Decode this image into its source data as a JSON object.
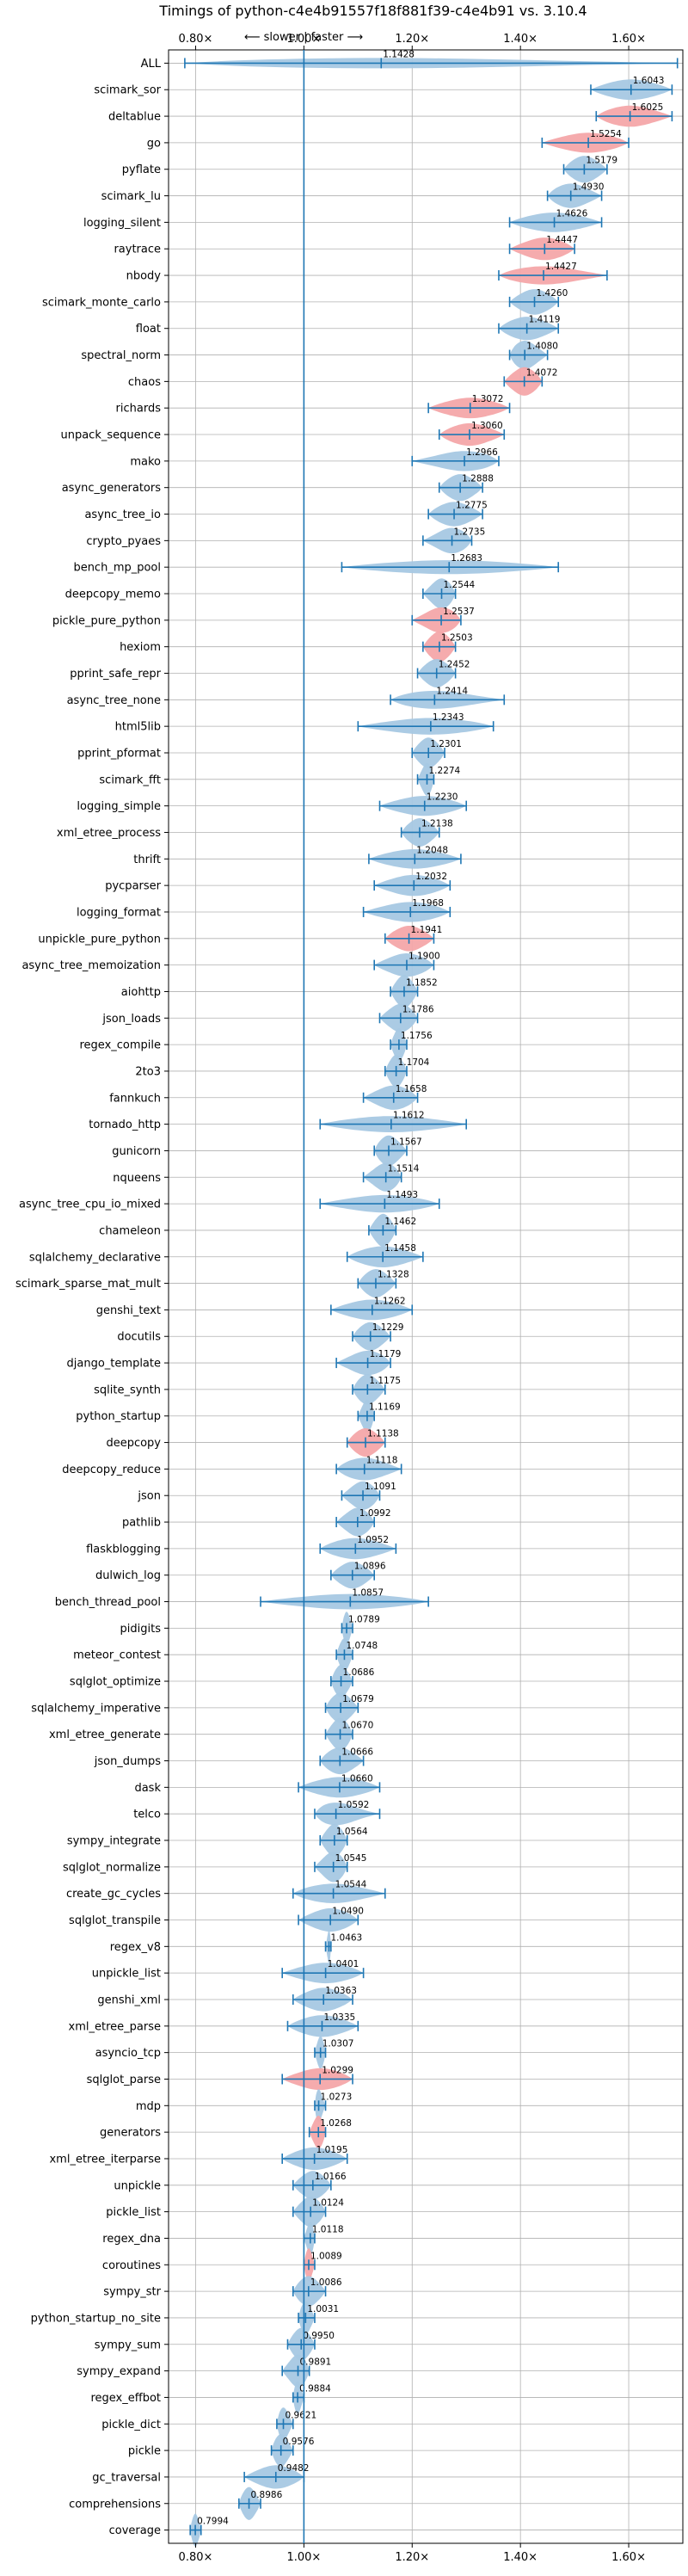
{
  "chart_data": {
    "type": "violin",
    "title": "Timings of python-c4e4b91557f18f881f39-c4e4b91 vs. 3.10.4",
    "xlabel": "",
    "ylabel": "",
    "direction_annotation": "⟵ slower | faster ⟶",
    "xlim": [
      0.75,
      1.7
    ],
    "xticks": [
      0.8,
      1.0,
      1.2,
      1.4,
      1.6
    ],
    "xtick_labels": [
      "0.80×",
      "1.00×",
      "1.20×",
      "1.40×",
      "1.60×"
    ],
    "reference_line": 1.0,
    "grid": true,
    "colors": {
      "faster": "#a6c8e3",
      "slower": "#f4a7a9",
      "line": "#1f77b4",
      "grid": "#b0b0b0"
    },
    "benchmarks": [
      {
        "name": "ALL",
        "value": 1.1428,
        "min": 0.78,
        "max": 1.69,
        "color": "blue"
      },
      {
        "name": "scimark_sor",
        "value": 1.6043,
        "min": 1.53,
        "max": 1.68,
        "color": "blue"
      },
      {
        "name": "deltablue",
        "value": 1.6025,
        "min": 1.54,
        "max": 1.68,
        "color": "red"
      },
      {
        "name": "go",
        "value": 1.5254,
        "min": 1.44,
        "max": 1.6,
        "color": "red"
      },
      {
        "name": "pyflate",
        "value": 1.5179,
        "min": 1.48,
        "max": 1.56,
        "color": "blue"
      },
      {
        "name": "scimark_lu",
        "value": 1.493,
        "min": 1.45,
        "max": 1.55,
        "color": "blue"
      },
      {
        "name": "logging_silent",
        "value": 1.4626,
        "min": 1.38,
        "max": 1.55,
        "color": "blue"
      },
      {
        "name": "raytrace",
        "value": 1.4447,
        "min": 1.38,
        "max": 1.5,
        "color": "red"
      },
      {
        "name": "nbody",
        "value": 1.4427,
        "min": 1.36,
        "max": 1.56,
        "color": "red"
      },
      {
        "name": "scimark_monte_carlo",
        "value": 1.426,
        "min": 1.38,
        "max": 1.47,
        "color": "blue"
      },
      {
        "name": "float",
        "value": 1.4119,
        "min": 1.36,
        "max": 1.47,
        "color": "blue"
      },
      {
        "name": "spectral_norm",
        "value": 1.408,
        "min": 1.38,
        "max": 1.45,
        "color": "blue"
      },
      {
        "name": "chaos",
        "value": 1.4072,
        "min": 1.37,
        "max": 1.44,
        "color": "red"
      },
      {
        "name": "richards",
        "value": 1.3072,
        "min": 1.23,
        "max": 1.38,
        "color": "red"
      },
      {
        "name": "unpack_sequence",
        "value": 1.306,
        "min": 1.25,
        "max": 1.37,
        "color": "red"
      },
      {
        "name": "mako",
        "value": 1.2966,
        "min": 1.2,
        "max": 1.36,
        "color": "blue"
      },
      {
        "name": "async_generators",
        "value": 1.2888,
        "min": 1.25,
        "max": 1.33,
        "color": "blue"
      },
      {
        "name": "async_tree_io",
        "value": 1.2775,
        "min": 1.23,
        "max": 1.33,
        "color": "blue"
      },
      {
        "name": "crypto_pyaes",
        "value": 1.2735,
        "min": 1.22,
        "max": 1.31,
        "color": "blue"
      },
      {
        "name": "bench_mp_pool",
        "value": 1.2683,
        "min": 1.07,
        "max": 1.47,
        "color": "blue"
      },
      {
        "name": "deepcopy_memo",
        "value": 1.2544,
        "min": 1.22,
        "max": 1.28,
        "color": "blue"
      },
      {
        "name": "pickle_pure_python",
        "value": 1.2537,
        "min": 1.2,
        "max": 1.29,
        "color": "red"
      },
      {
        "name": "hexiom",
        "value": 1.2503,
        "min": 1.22,
        "max": 1.28,
        "color": "red"
      },
      {
        "name": "pprint_safe_repr",
        "value": 1.2452,
        "min": 1.21,
        "max": 1.28,
        "color": "blue"
      },
      {
        "name": "async_tree_none",
        "value": 1.2414,
        "min": 1.16,
        "max": 1.37,
        "color": "blue"
      },
      {
        "name": "html5lib",
        "value": 1.2343,
        "min": 1.1,
        "max": 1.35,
        "color": "blue"
      },
      {
        "name": "pprint_pformat",
        "value": 1.2301,
        "min": 1.2,
        "max": 1.26,
        "color": "blue"
      },
      {
        "name": "scimark_fft",
        "value": 1.2274,
        "min": 1.21,
        "max": 1.24,
        "color": "blue"
      },
      {
        "name": "logging_simple",
        "value": 1.223,
        "min": 1.14,
        "max": 1.3,
        "color": "blue"
      },
      {
        "name": "xml_etree_process",
        "value": 1.2138,
        "min": 1.18,
        "max": 1.25,
        "color": "blue"
      },
      {
        "name": "thrift",
        "value": 1.2048,
        "min": 1.12,
        "max": 1.29,
        "color": "blue"
      },
      {
        "name": "pycparser",
        "value": 1.2032,
        "min": 1.13,
        "max": 1.27,
        "color": "blue"
      },
      {
        "name": "logging_format",
        "value": 1.1968,
        "min": 1.11,
        "max": 1.27,
        "color": "blue"
      },
      {
        "name": "unpickle_pure_python",
        "value": 1.1941,
        "min": 1.15,
        "max": 1.24,
        "color": "red"
      },
      {
        "name": "async_tree_memoization",
        "value": 1.19,
        "min": 1.13,
        "max": 1.24,
        "color": "blue"
      },
      {
        "name": "aiohttp",
        "value": 1.1852,
        "min": 1.16,
        "max": 1.21,
        "color": "blue"
      },
      {
        "name": "json_loads",
        "value": 1.1786,
        "min": 1.14,
        "max": 1.21,
        "color": "blue"
      },
      {
        "name": "regex_compile",
        "value": 1.1756,
        "min": 1.16,
        "max": 1.19,
        "color": "blue"
      },
      {
        "name": "2to3",
        "value": 1.1704,
        "min": 1.15,
        "max": 1.19,
        "color": "blue"
      },
      {
        "name": "fannkuch",
        "value": 1.1658,
        "min": 1.11,
        "max": 1.21,
        "color": "blue"
      },
      {
        "name": "tornado_http",
        "value": 1.1612,
        "min": 1.03,
        "max": 1.3,
        "color": "blue"
      },
      {
        "name": "gunicorn",
        "value": 1.1567,
        "min": 1.13,
        "max": 1.19,
        "color": "blue"
      },
      {
        "name": "nqueens",
        "value": 1.1514,
        "min": 1.11,
        "max": 1.18,
        "color": "blue"
      },
      {
        "name": "async_tree_cpu_io_mixed",
        "value": 1.1493,
        "min": 1.03,
        "max": 1.25,
        "color": "blue"
      },
      {
        "name": "chameleon",
        "value": 1.1462,
        "min": 1.12,
        "max": 1.17,
        "color": "blue"
      },
      {
        "name": "sqlalchemy_declarative",
        "value": 1.1458,
        "min": 1.08,
        "max": 1.22,
        "color": "blue"
      },
      {
        "name": "scimark_sparse_mat_mult",
        "value": 1.1328,
        "min": 1.1,
        "max": 1.17,
        "color": "blue"
      },
      {
        "name": "genshi_text",
        "value": 1.1262,
        "min": 1.05,
        "max": 1.2,
        "color": "blue"
      },
      {
        "name": "docutils",
        "value": 1.1229,
        "min": 1.09,
        "max": 1.16,
        "color": "blue"
      },
      {
        "name": "django_template",
        "value": 1.1179,
        "min": 1.06,
        "max": 1.16,
        "color": "blue"
      },
      {
        "name": "sqlite_synth",
        "value": 1.1175,
        "min": 1.09,
        "max": 1.15,
        "color": "blue"
      },
      {
        "name": "python_startup",
        "value": 1.1169,
        "min": 1.1,
        "max": 1.13,
        "color": "blue"
      },
      {
        "name": "deepcopy",
        "value": 1.1138,
        "min": 1.08,
        "max": 1.15,
        "color": "red"
      },
      {
        "name": "deepcopy_reduce",
        "value": 1.1118,
        "min": 1.06,
        "max": 1.18,
        "color": "blue"
      },
      {
        "name": "json",
        "value": 1.1091,
        "min": 1.07,
        "max": 1.14,
        "color": "blue"
      },
      {
        "name": "pathlib",
        "value": 1.0992,
        "min": 1.06,
        "max": 1.13,
        "color": "blue"
      },
      {
        "name": "flaskblogging",
        "value": 1.0952,
        "min": 1.03,
        "max": 1.17,
        "color": "blue"
      },
      {
        "name": "dulwich_log",
        "value": 1.0896,
        "min": 1.05,
        "max": 1.13,
        "color": "blue"
      },
      {
        "name": "bench_thread_pool",
        "value": 1.0857,
        "min": 0.92,
        "max": 1.23,
        "color": "blue"
      },
      {
        "name": "pidigits",
        "value": 1.0789,
        "min": 1.07,
        "max": 1.09,
        "color": "blue"
      },
      {
        "name": "meteor_contest",
        "value": 1.0748,
        "min": 1.06,
        "max": 1.09,
        "color": "blue"
      },
      {
        "name": "sqlglot_optimize",
        "value": 1.0686,
        "min": 1.05,
        "max": 1.09,
        "color": "blue"
      },
      {
        "name": "sqlalchemy_imperative",
        "value": 1.0679,
        "min": 1.04,
        "max": 1.1,
        "color": "blue"
      },
      {
        "name": "xml_etree_generate",
        "value": 1.067,
        "min": 1.04,
        "max": 1.09,
        "color": "blue"
      },
      {
        "name": "json_dumps",
        "value": 1.0666,
        "min": 1.03,
        "max": 1.11,
        "color": "blue"
      },
      {
        "name": "dask",
        "value": 1.066,
        "min": 0.99,
        "max": 1.14,
        "color": "blue"
      },
      {
        "name": "telco",
        "value": 1.0592,
        "min": 1.02,
        "max": 1.14,
        "color": "blue"
      },
      {
        "name": "sympy_integrate",
        "value": 1.0564,
        "min": 1.03,
        "max": 1.08,
        "color": "blue"
      },
      {
        "name": "sqlglot_normalize",
        "value": 1.0545,
        "min": 1.02,
        "max": 1.08,
        "color": "blue"
      },
      {
        "name": "create_gc_cycles",
        "value": 1.0544,
        "min": 0.98,
        "max": 1.15,
        "color": "blue"
      },
      {
        "name": "sqlglot_transpile",
        "value": 1.049,
        "min": 0.99,
        "max": 1.1,
        "color": "blue"
      },
      {
        "name": "regex_v8",
        "value": 1.0463,
        "min": 1.04,
        "max": 1.05,
        "color": "blue"
      },
      {
        "name": "unpickle_list",
        "value": 1.0401,
        "min": 0.96,
        "max": 1.11,
        "color": "blue"
      },
      {
        "name": "genshi_xml",
        "value": 1.0363,
        "min": 0.98,
        "max": 1.09,
        "color": "blue"
      },
      {
        "name": "xml_etree_parse",
        "value": 1.0335,
        "min": 0.97,
        "max": 1.1,
        "color": "blue"
      },
      {
        "name": "asyncio_tcp",
        "value": 1.0307,
        "min": 1.02,
        "max": 1.04,
        "color": "blue"
      },
      {
        "name": "sqlglot_parse",
        "value": 1.0299,
        "min": 0.96,
        "max": 1.09,
        "color": "red"
      },
      {
        "name": "mdp",
        "value": 1.0273,
        "min": 1.02,
        "max": 1.04,
        "color": "blue"
      },
      {
        "name": "generators",
        "value": 1.0268,
        "min": 1.01,
        "max": 1.04,
        "color": "red"
      },
      {
        "name": "xml_etree_iterparse",
        "value": 1.0195,
        "min": 0.96,
        "max": 1.08,
        "color": "blue"
      },
      {
        "name": "unpickle",
        "value": 1.0166,
        "min": 0.98,
        "max": 1.05,
        "color": "blue"
      },
      {
        "name": "pickle_list",
        "value": 1.0124,
        "min": 0.98,
        "max": 1.04,
        "color": "blue"
      },
      {
        "name": "regex_dna",
        "value": 1.0118,
        "min": 1.0,
        "max": 1.02,
        "color": "blue"
      },
      {
        "name": "coroutines",
        "value": 1.0089,
        "min": 1.0,
        "max": 1.02,
        "color": "red"
      },
      {
        "name": "sympy_str",
        "value": 1.0086,
        "min": 0.98,
        "max": 1.04,
        "color": "blue"
      },
      {
        "name": "python_startup_no_site",
        "value": 1.0031,
        "min": 0.99,
        "max": 1.02,
        "color": "blue"
      },
      {
        "name": "sympy_sum",
        "value": 0.995,
        "min": 0.97,
        "max": 1.02,
        "color": "blue"
      },
      {
        "name": "sympy_expand",
        "value": 0.9891,
        "min": 0.96,
        "max": 1.01,
        "color": "blue"
      },
      {
        "name": "regex_effbot",
        "value": 0.9884,
        "min": 0.98,
        "max": 1.0,
        "color": "blue"
      },
      {
        "name": "pickle_dict",
        "value": 0.9621,
        "min": 0.95,
        "max": 0.98,
        "color": "blue"
      },
      {
        "name": "pickle",
        "value": 0.9576,
        "min": 0.94,
        "max": 0.98,
        "color": "blue"
      },
      {
        "name": "gc_traversal",
        "value": 0.9482,
        "min": 0.89,
        "max": 1.0,
        "color": "blue"
      },
      {
        "name": "comprehensions",
        "value": 0.8986,
        "min": 0.88,
        "max": 0.92,
        "color": "blue"
      },
      {
        "name": "coverage",
        "value": 0.7994,
        "min": 0.79,
        "max": 0.81,
        "color": "blue"
      }
    ]
  }
}
